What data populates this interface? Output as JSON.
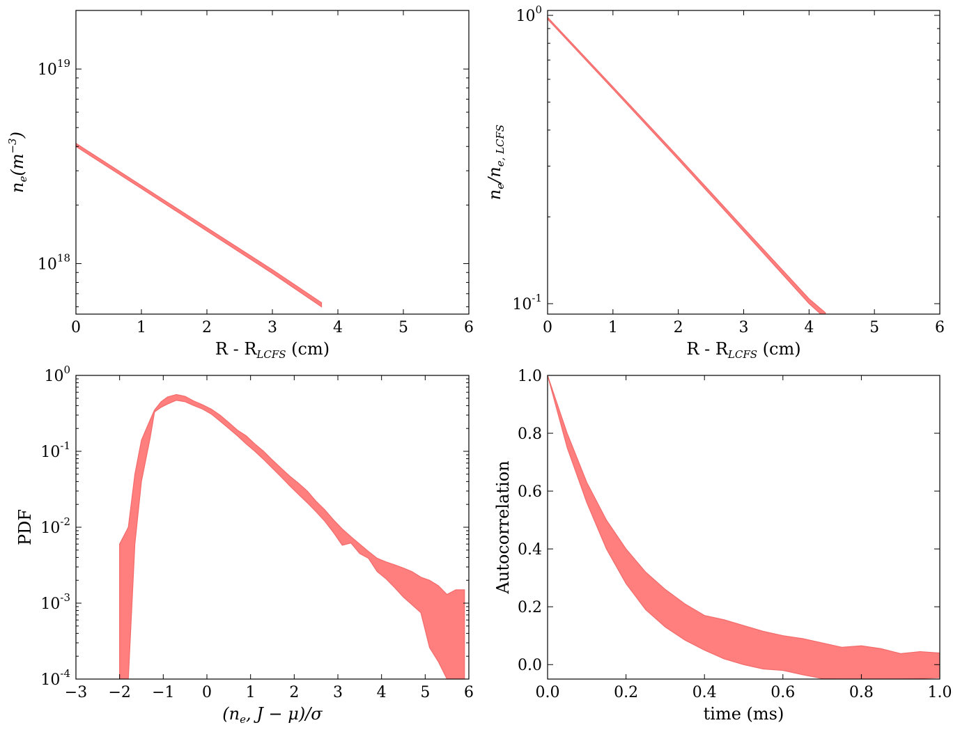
{
  "colors": {
    "band_fill": "#ff7f7f",
    "band_edge": "#f36a6a",
    "axes": "#000000"
  },
  "chart_data": [
    {
      "id": "p1",
      "type": "area",
      "xscale": "linear",
      "yscale": "log",
      "xlim": [
        0,
        6
      ],
      "ylim": [
        5.5e+17,
        2e+19
      ],
      "xticks": [
        0,
        1,
        2,
        3,
        4,
        5,
        6
      ],
      "xtick_labels": [
        "0",
        "1",
        "2",
        "3",
        "4",
        "5",
        "6"
      ],
      "yticks": [
        1e+18,
        1e+19
      ],
      "ytick_labels": [
        {
          "base": "10",
          "exp": "18"
        },
        {
          "base": "10",
          "exp": "19"
        }
      ],
      "xlabel": {
        "main": "R - R",
        "sub": "LCFS",
        "tail": " (cm)"
      },
      "ylabel": {
        "main": "n",
        "sub": "e",
        "tail": "(m",
        "sup": "−3",
        "close": ")"
      },
      "x": [
        0,
        1,
        2,
        3,
        3.75
      ],
      "lower": [
        4e+18,
        2.43e+18,
        1.47e+18,
        8.9e+17,
        6e+17
      ],
      "upper": [
        4.15e+18,
        2.52e+18,
        1.53e+18,
        9.3e+17,
        6.3e+17
      ]
    },
    {
      "id": "p2",
      "type": "area",
      "xscale": "linear",
      "yscale": "log",
      "xlim": [
        0,
        6
      ],
      "ylim": [
        0.092,
        1.04
      ],
      "xticks": [
        0,
        1,
        2,
        3,
        4,
        5,
        6
      ],
      "xtick_labels": [
        "0",
        "1",
        "2",
        "3",
        "4",
        "5",
        "6"
      ],
      "yticks": [
        0.1,
        1
      ],
      "ytick_labels": [
        {
          "base": "10",
          "exp": "-1"
        },
        {
          "base": "10",
          "exp": "0"
        }
      ],
      "xlabel": {
        "main": "R - R",
        "sub": "LCFS",
        "tail": " (cm)"
      },
      "ylabel": {
        "main": "n",
        "sub": "e",
        "mid": "/n",
        "sub2": "e, LCFS"
      },
      "x": [
        0,
        1,
        2,
        3,
        4,
        4.25
      ],
      "lower": [
        0.97,
        0.555,
        0.316,
        0.178,
        0.1,
        0.089
      ],
      "upper": [
        0.985,
        0.565,
        0.323,
        0.183,
        0.104,
        0.093
      ]
    },
    {
      "id": "p3",
      "type": "area",
      "xscale": "linear",
      "yscale": "log",
      "xlim": [
        -3,
        6
      ],
      "ylim": [
        0.0001,
        1
      ],
      "xticks": [
        -3,
        -2,
        -1,
        0,
        1,
        2,
        3,
        4,
        5,
        6
      ],
      "xtick_labels": [
        "−3",
        "−2",
        "−1",
        "0",
        "1",
        "2",
        "3",
        "4",
        "5",
        "6"
      ],
      "yticks": [
        0.0001,
        0.001,
        0.01,
        0.1,
        1
      ],
      "ytick_labels": [
        {
          "base": "10",
          "exp": "-4"
        },
        {
          "base": "10",
          "exp": "-3"
        },
        {
          "base": "10",
          "exp": "-2"
        },
        {
          "base": "10",
          "exp": "-1"
        },
        {
          "base": "10",
          "exp": "0"
        }
      ],
      "xlabel": {
        "main": "(n",
        "sub": "e",
        "tail": ", J − μ)/σ"
      },
      "ylabel": {
        "main": "PDF"
      },
      "x": [
        -2.0,
        -1.8,
        -1.65,
        -1.5,
        -1.3,
        -1.2,
        -1.05,
        -0.9,
        -0.7,
        -0.5,
        -0.3,
        -0.1,
        0.1,
        0.3,
        0.5,
        0.7,
        0.9,
        1.1,
        1.3,
        1.5,
        1.7,
        1.9,
        2.1,
        2.3,
        2.5,
        2.7,
        2.9,
        3.1,
        3.3,
        3.5,
        3.7,
        3.9,
        4.1,
        4.3,
        4.5,
        4.7,
        4.9,
        5.1,
        5.3,
        5.5,
        5.7,
        5.9
      ],
      "upper": [
        0.006,
        0.01,
        0.05,
        0.14,
        0.26,
        0.35,
        0.45,
        0.52,
        0.56,
        0.53,
        0.46,
        0.41,
        0.36,
        0.3,
        0.24,
        0.19,
        0.16,
        0.125,
        0.1,
        0.077,
        0.06,
        0.047,
        0.038,
        0.03,
        0.022,
        0.017,
        0.0125,
        0.0095,
        0.0075,
        0.006,
        0.0048,
        0.0039,
        0.0035,
        0.0032,
        0.0029,
        0.0026,
        0.0022,
        0.002,
        0.0017,
        0.0013,
        0.0015,
        0.0015
      ],
      "lower": [
        0.0001,
        0.0001,
        0.006,
        0.04,
        0.15,
        0.33,
        0.38,
        0.42,
        0.47,
        0.45,
        0.4,
        0.36,
        0.31,
        0.25,
        0.2,
        0.16,
        0.125,
        0.1,
        0.078,
        0.06,
        0.046,
        0.035,
        0.027,
        0.021,
        0.016,
        0.012,
        0.0085,
        0.0058,
        0.0062,
        0.0045,
        0.0039,
        0.0026,
        0.0021,
        0.0016,
        0.0012,
        0.00095,
        0.00075,
        0.00026,
        0.00017,
        0.0001,
        0.0001,
        0.0001
      ]
    },
    {
      "id": "p4",
      "type": "area",
      "xscale": "linear",
      "yscale": "linear",
      "xlim": [
        0,
        1
      ],
      "ylim": [
        -0.05,
        1
      ],
      "xticks": [
        0,
        0.2,
        0.4,
        0.6,
        0.8,
        1.0
      ],
      "xtick_labels": [
        "0.0",
        "0.2",
        "0.4",
        "0.6",
        "0.8",
        "1.0"
      ],
      "yticks": [
        0,
        0.2,
        0.4,
        0.6,
        0.8,
        1.0
      ],
      "ytick_labels": [
        "0.0",
        "0.2",
        "0.4",
        "0.6",
        "0.8",
        "1.0"
      ],
      "xlabel": {
        "main": "time (ms)"
      },
      "ylabel": {
        "main": "Autocorrelation"
      },
      "x": [
        0.0,
        0.05,
        0.1,
        0.15,
        0.2,
        0.25,
        0.3,
        0.35,
        0.4,
        0.45,
        0.5,
        0.55,
        0.6,
        0.65,
        0.7,
        0.75,
        0.8,
        0.85,
        0.9,
        0.95,
        1.0
      ],
      "upper": [
        1.0,
        0.8,
        0.63,
        0.5,
        0.4,
        0.32,
        0.26,
        0.21,
        0.17,
        0.155,
        0.135,
        0.115,
        0.1,
        0.09,
        0.075,
        0.06,
        0.065,
        0.055,
        0.038,
        0.045,
        0.04
      ],
      "lower": [
        1.0,
        0.75,
        0.56,
        0.4,
        0.28,
        0.19,
        0.13,
        0.085,
        0.05,
        0.02,
        0.0,
        -0.015,
        -0.02,
        -0.035,
        -0.048,
        -0.05,
        -0.05,
        -0.05,
        -0.05,
        -0.048,
        -0.045
      ]
    }
  ]
}
